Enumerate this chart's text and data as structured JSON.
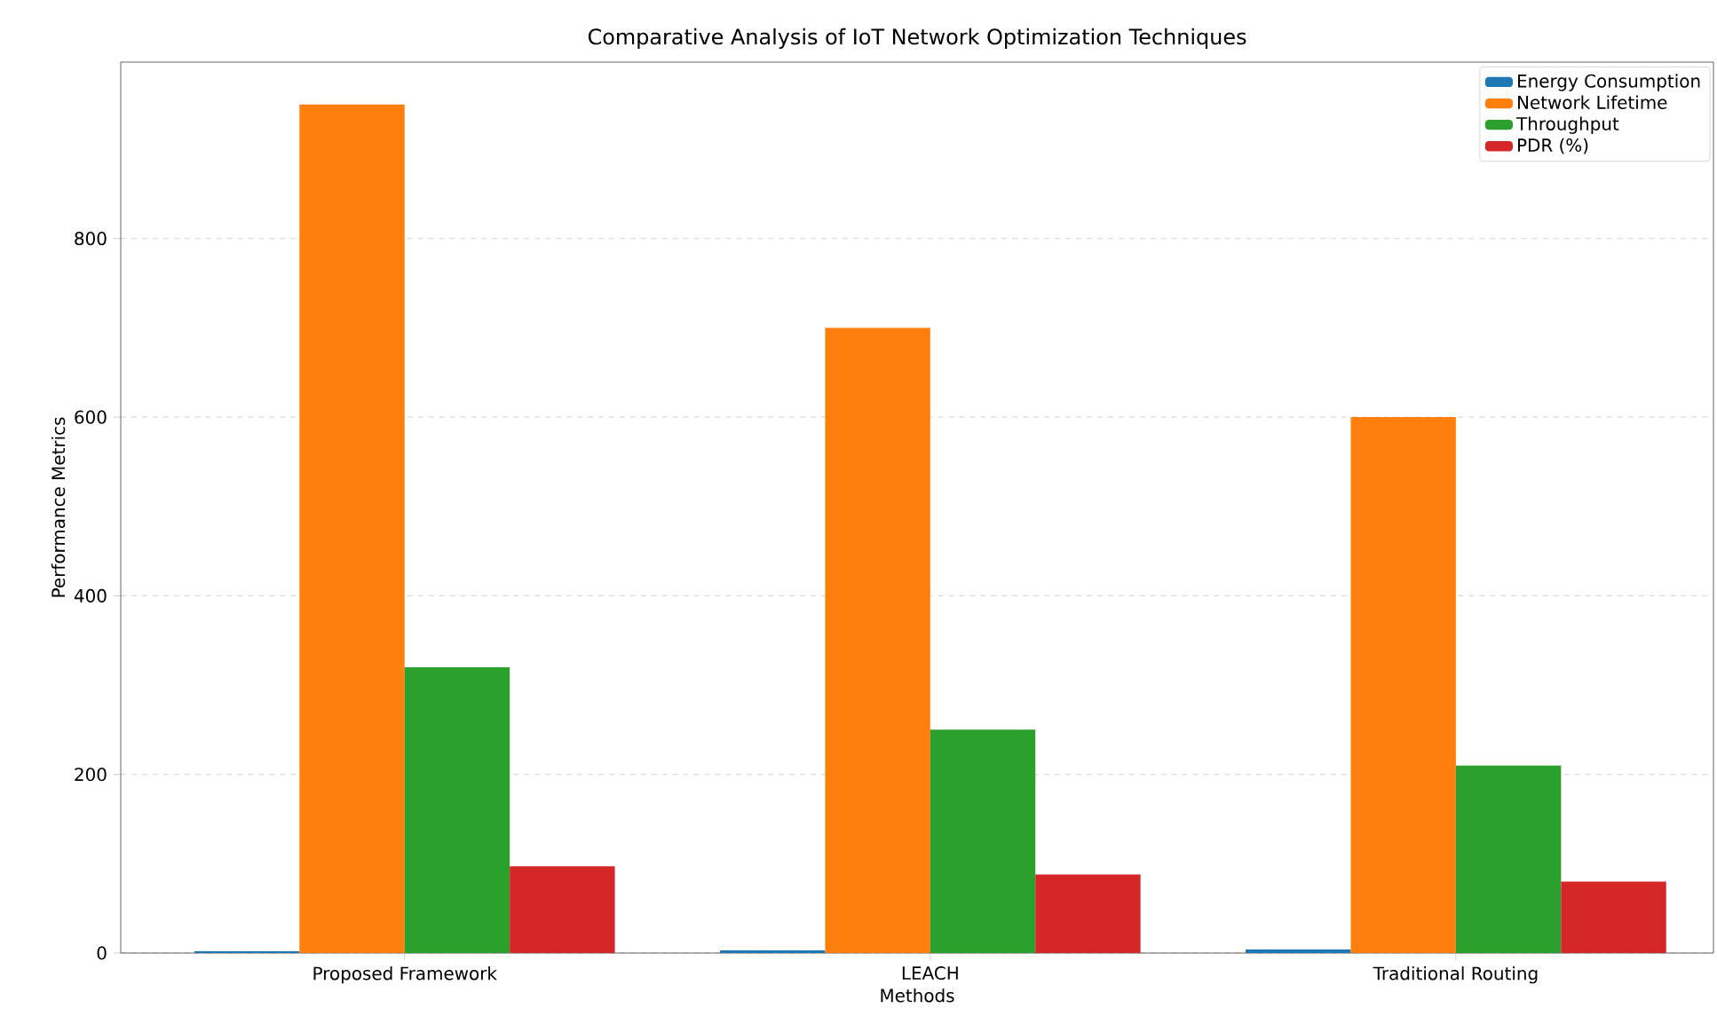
{
  "chart_data": {
    "type": "bar",
    "title": "Comparative Analysis of IoT Network Optimization Techniques",
    "xlabel": "Methods",
    "ylabel": "Performance Metrics",
    "categories": [
      "Proposed Framework",
      "LEACH",
      "Traditional Routing"
    ],
    "series": [
      {
        "name": "Energy Consumption",
        "color": "#1f77b4",
        "values": [
          2,
          3,
          4
        ]
      },
      {
        "name": "Network Lifetime",
        "color": "#ff7f0e",
        "values": [
          950,
          700,
          600
        ]
      },
      {
        "name": "Throughput",
        "color": "#2ca02c",
        "values": [
          320,
          250,
          210
        ]
      },
      {
        "name": "PDR (%)",
        "color": "#d62728",
        "values": [
          97,
          88,
          80
        ]
      }
    ],
    "ylim": [
      0,
      997.5
    ],
    "yticks": [
      0,
      200,
      400,
      600,
      800
    ],
    "grid": "y",
    "legend": "top right"
  }
}
